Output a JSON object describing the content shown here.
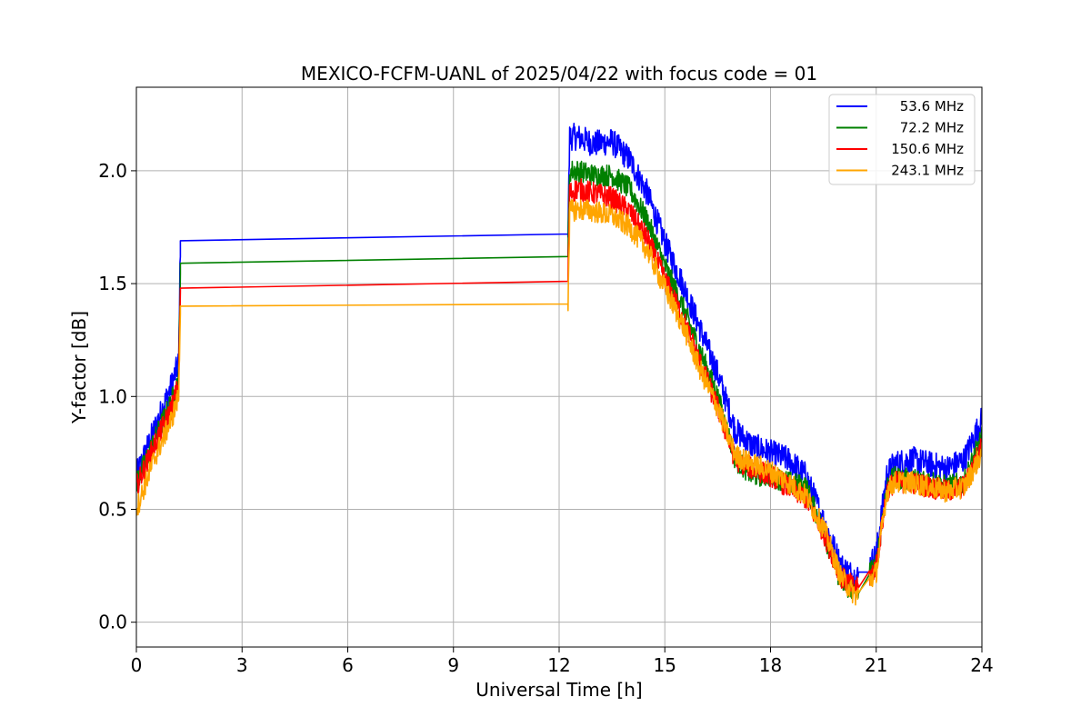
{
  "chart_data": {
    "type": "line",
    "title": "MEXICO-FCFM-UANL of 2025/04/22 with focus code = 01",
    "xlabel": "Universal Time [h]",
    "ylabel": "Y-factor [dB]",
    "xlim": [
      0,
      24
    ],
    "ylim": [
      -0.11,
      2.37
    ],
    "xticks": [
      0,
      3,
      6,
      9,
      12,
      15,
      18,
      21,
      24
    ],
    "xtick_labels": [
      "0",
      "3",
      "6",
      "9",
      "12",
      "15",
      "18",
      "21",
      "24"
    ],
    "yticks": [
      0.0,
      0.5,
      1.0,
      1.5,
      2.0
    ],
    "ytick_labels": [
      "0.0",
      "0.5",
      "1.0",
      "1.5",
      "2.0"
    ],
    "grid": true,
    "legend_position": "top-right",
    "x": [
      0,
      0.5,
      1.0,
      1.2,
      1.25,
      12.25,
      12.3,
      12.5,
      13.0,
      13.5,
      14.0,
      14.5,
      15.0,
      15.5,
      16.0,
      16.5,
      17.0,
      17.5,
      18.0,
      18.5,
      19.0,
      19.5,
      20.0,
      20.4,
      20.5,
      20.8,
      21.0,
      21.3,
      21.5,
      22.0,
      22.5,
      23.0,
      23.5,
      24.0
    ],
    "series": [
      {
        "name": "53.6 MHz",
        "color": "#0000ff",
        "noise": 0.06,
        "values": [
          0.65,
          0.85,
          1.05,
          1.15,
          1.69,
          1.72,
          2.15,
          2.15,
          2.12,
          2.13,
          2.05,
          1.9,
          1.68,
          1.5,
          1.3,
          1.1,
          0.85,
          0.78,
          0.75,
          0.72,
          0.65,
          0.45,
          0.25,
          0.2,
          0.2,
          0.25,
          0.3,
          0.65,
          0.7,
          0.72,
          0.7,
          0.68,
          0.72,
          0.9
        ]
      },
      {
        "name": "72.2 MHz",
        "color": "#008000",
        "noise": 0.05,
        "values": [
          0.62,
          0.8,
          0.98,
          1.08,
          1.59,
          1.62,
          2.0,
          2.0,
          1.98,
          1.98,
          1.92,
          1.78,
          1.58,
          1.4,
          1.2,
          1.0,
          0.72,
          0.65,
          0.65,
          0.62,
          0.6,
          0.4,
          0.18,
          0.13,
          0.15,
          0.22,
          0.25,
          0.6,
          0.64,
          0.63,
          0.63,
          0.6,
          0.62,
          0.82
        ]
      },
      {
        "name": "150.6 MHz",
        "color": "#ff0000",
        "noise": 0.05,
        "values": [
          0.6,
          0.78,
          0.95,
          1.05,
          1.48,
          1.51,
          1.9,
          1.92,
          1.9,
          1.88,
          1.82,
          1.7,
          1.52,
          1.35,
          1.15,
          0.95,
          0.72,
          0.68,
          0.65,
          0.6,
          0.55,
          0.4,
          0.2,
          0.15,
          0.15,
          0.2,
          0.25,
          0.58,
          0.62,
          0.62,
          0.6,
          0.58,
          0.6,
          0.78
        ]
      },
      {
        "name": "243.1 MHz",
        "color": "#ffa500",
        "noise": 0.05,
        "values": [
          0.5,
          0.72,
          0.9,
          1.0,
          1.4,
          1.41,
          1.82,
          1.83,
          1.82,
          1.8,
          1.75,
          1.65,
          1.48,
          1.32,
          1.12,
          0.95,
          0.74,
          0.7,
          0.67,
          0.62,
          0.56,
          0.42,
          0.2,
          0.12,
          0.12,
          0.18,
          0.22,
          0.58,
          0.62,
          0.62,
          0.6,
          0.58,
          0.6,
          0.75
        ]
      }
    ]
  }
}
